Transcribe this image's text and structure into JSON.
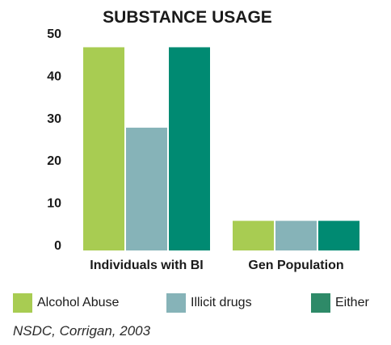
{
  "chart_data": {
    "type": "bar",
    "title": "SUBSTANCE USAGE",
    "categories": [
      "Individuals with BI",
      "Gen Population"
    ],
    "series": [
      {
        "name": "Alcohol Abuse",
        "values": [
          48,
          7
        ],
        "color": "#a8cc52"
      },
      {
        "name": "Illicit drugs",
        "values": [
          29,
          7
        ],
        "color": "#86b3b8"
      },
      {
        "name": "Either",
        "values": [
          48,
          7
        ],
        "color": "#008a72"
      }
    ],
    "ylim": [
      0,
      50
    ],
    "yticks": [
      0,
      10,
      20,
      30,
      40,
      50
    ],
    "grid": false,
    "legend_position": "bottom",
    "legend_swatch_colors": [
      "#a8cc52",
      "#86b3b8",
      "#2e8a68"
    ]
  },
  "source": "NSDC, Corrigan, 2003"
}
